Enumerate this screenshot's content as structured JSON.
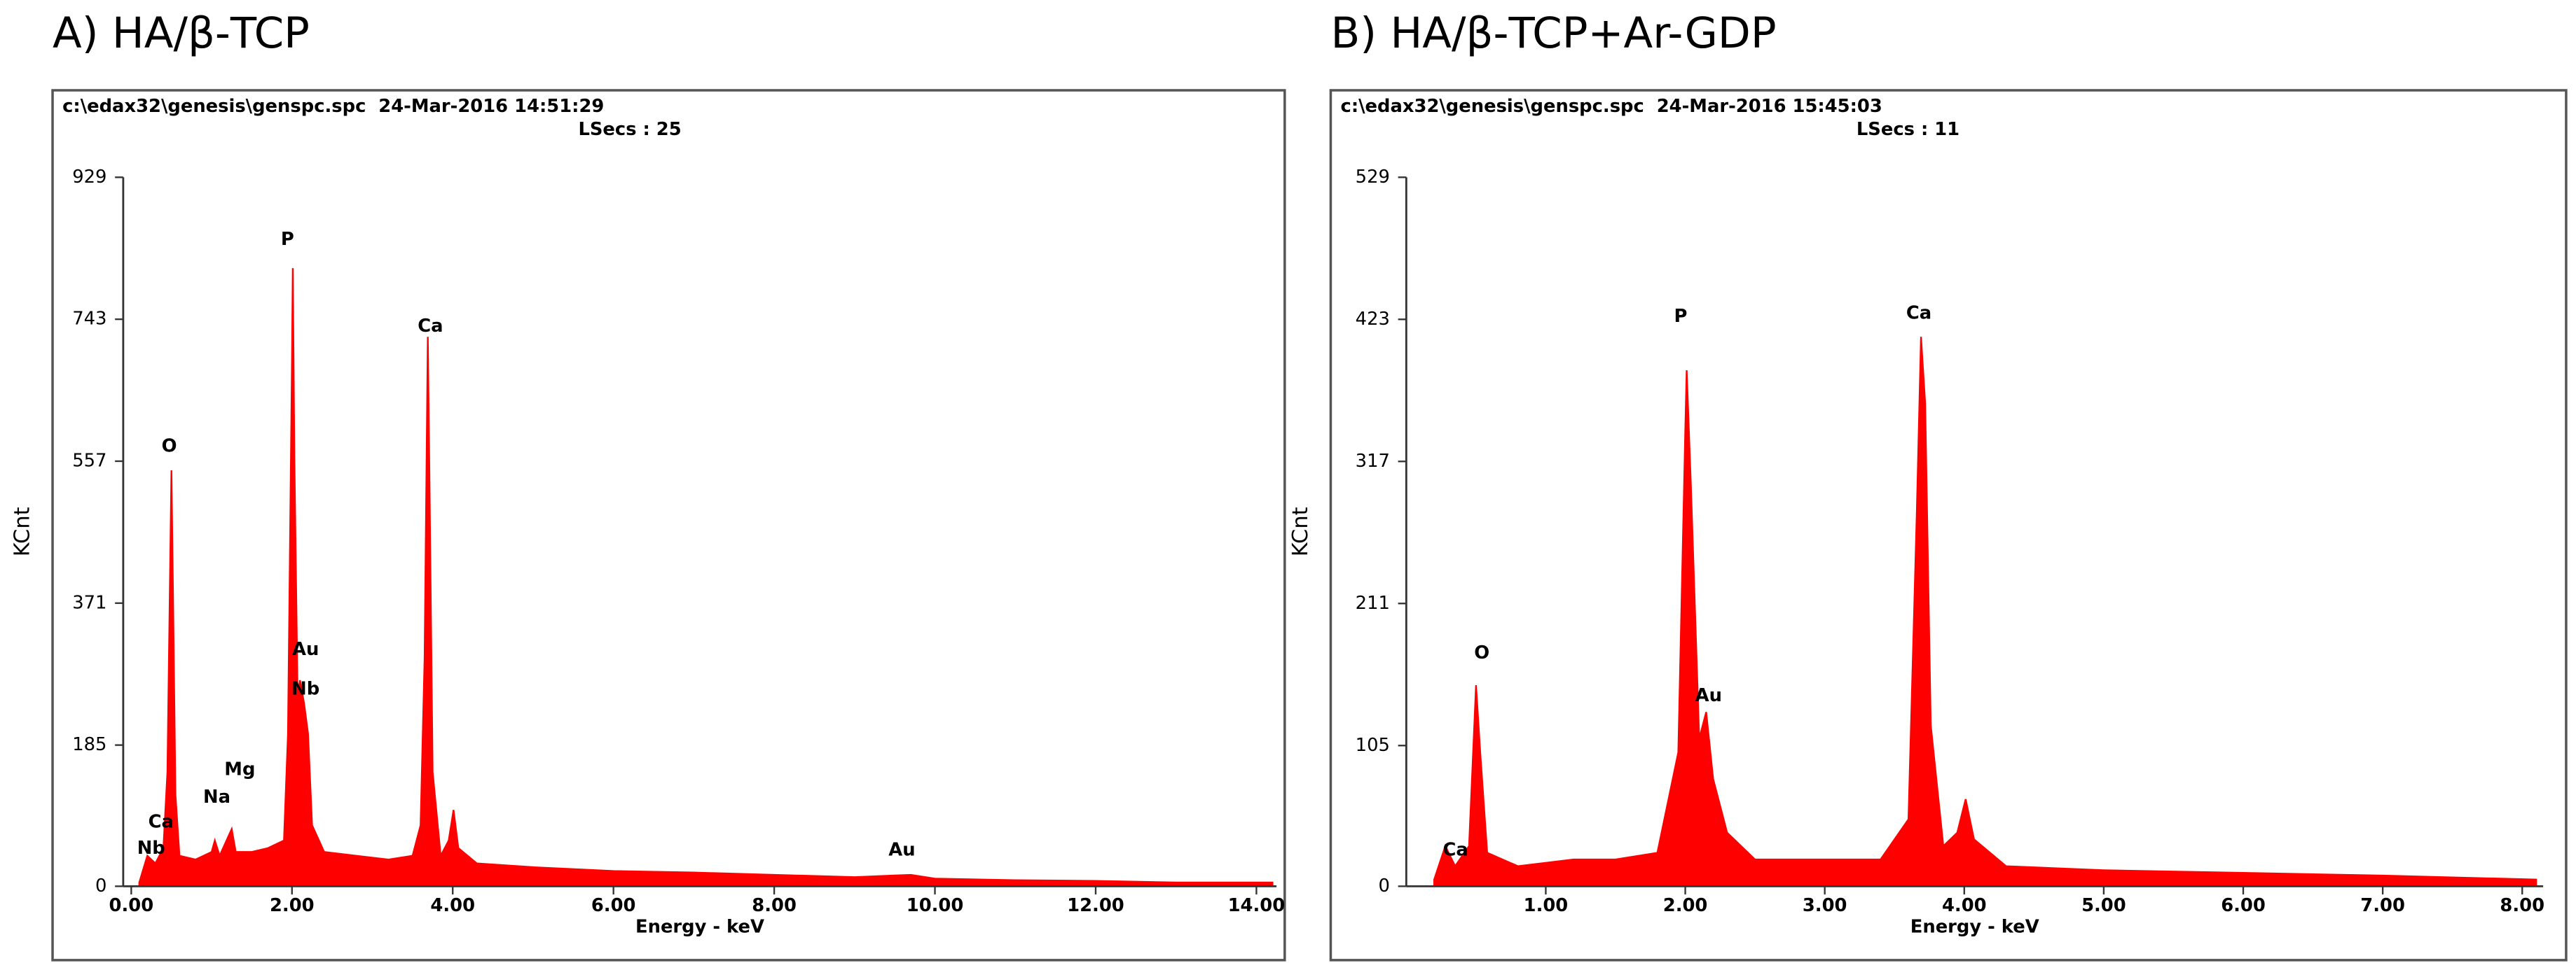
{
  "chart_data": [
    {
      "type": "spectrum",
      "title": "A) HA/β-TCP",
      "subtitle": "c:\\edax32\\genesis\\genspc.spc  24-Mar-2016 14:51:29",
      "note": "LSecs : 25",
      "x_label": "Energy - keV",
      "y_label": "KCnt",
      "color": "#ff0000",
      "xlim": [
        -0.1,
        14.25
      ],
      "ylim": [
        0,
        929
      ],
      "xticks": [
        {
          "value": 0,
          "label": "0.00"
        },
        {
          "value": 2,
          "label": "2.00"
        },
        {
          "value": 4,
          "label": "4.00"
        },
        {
          "value": 6,
          "label": "6.00"
        },
        {
          "value": 8,
          "label": "8.00"
        },
        {
          "value": 10,
          "label": "10.00"
        },
        {
          "value": 12,
          "label": "12.00"
        },
        {
          "value": 14,
          "label": "14.00"
        }
      ],
      "yticks": [
        0,
        185,
        371,
        557,
        743,
        929
      ],
      "annotations": [
        "O",
        "P",
        "Ca",
        "Au",
        "Nb",
        "Mg",
        "Na",
        "Ca",
        "Nb",
        "Au"
      ],
      "x": [
        0.1,
        0.2,
        0.3,
        0.4,
        0.45,
        0.5,
        0.52,
        0.55,
        0.6,
        0.8,
        1.0,
        1.04,
        1.1,
        1.25,
        1.3,
        1.5,
        1.7,
        1.9,
        1.95,
        2.0,
        2.01,
        2.03,
        2.07,
        2.1,
        2.15,
        2.2,
        2.25,
        2.4,
        2.8,
        3.2,
        3.5,
        3.6,
        3.65,
        3.69,
        3.71,
        3.75,
        3.85,
        3.95,
        4.01,
        4.07,
        4.3,
        5,
        6,
        7,
        8,
        9,
        9.7,
        10,
        11,
        12,
        13,
        14.2
      ],
      "values": [
        5,
        40,
        30,
        50,
        150,
        545,
        380,
        120,
        40,
        35,
        45,
        60,
        40,
        75,
        45,
        45,
        50,
        60,
        200,
        690,
        810,
        560,
        250,
        270,
        240,
        200,
        80,
        45,
        40,
        35,
        40,
        80,
        300,
        720,
        540,
        150,
        40,
        60,
        100,
        50,
        30,
        25,
        20,
        18,
        15,
        12,
        15,
        10,
        8,
        7,
        5,
        5
      ]
    },
    {
      "type": "spectrum",
      "title": "B) HA/β-TCP+Ar-GDP",
      "subtitle": "c:\\edax32\\genesis\\genspc.spc  24-Mar-2016 15:45:03",
      "note": "LSecs : 11",
      "x_label": "Energy - keV",
      "y_label": "KCnt",
      "color": "#ff0000",
      "xlim": [
        0,
        8.15
      ],
      "ylim": [
        0,
        529
      ],
      "xticks": [
        {
          "value": 1,
          "label": "1.00"
        },
        {
          "value": 2,
          "label": "2.00"
        },
        {
          "value": 3,
          "label": "3.00"
        },
        {
          "value": 4,
          "label": "4.00"
        },
        {
          "value": 5,
          "label": "5.00"
        },
        {
          "value": 6,
          "label": "6.00"
        },
        {
          "value": 7,
          "label": "7.00"
        },
        {
          "value": 8,
          "label": "8.00"
        }
      ],
      "yticks": [
        0,
        105,
        211,
        317,
        423,
        529
      ],
      "annotations": [
        "P",
        "Ca",
        "O",
        "Au",
        "Ca"
      ],
      "x": [
        0.2,
        0.28,
        0.35,
        0.45,
        0.5,
        0.53,
        0.58,
        0.8,
        1.2,
        1.5,
        1.8,
        1.95,
        2.0,
        2.01,
        2.04,
        2.1,
        2.15,
        2.2,
        2.3,
        2.5,
        3.0,
        3.4,
        3.6,
        3.66,
        3.69,
        3.72,
        3.76,
        3.85,
        3.95,
        4.01,
        4.07,
        4.3,
        5,
        6,
        7,
        8.1
      ],
      "values": [
        5,
        30,
        15,
        30,
        150,
        100,
        25,
        15,
        20,
        20,
        25,
        100,
        340,
        385,
        300,
        110,
        130,
        80,
        40,
        20,
        20,
        20,
        50,
        280,
        410,
        360,
        120,
        30,
        40,
        65,
        35,
        15,
        12,
        10,
        8,
        5
      ]
    }
  ]
}
